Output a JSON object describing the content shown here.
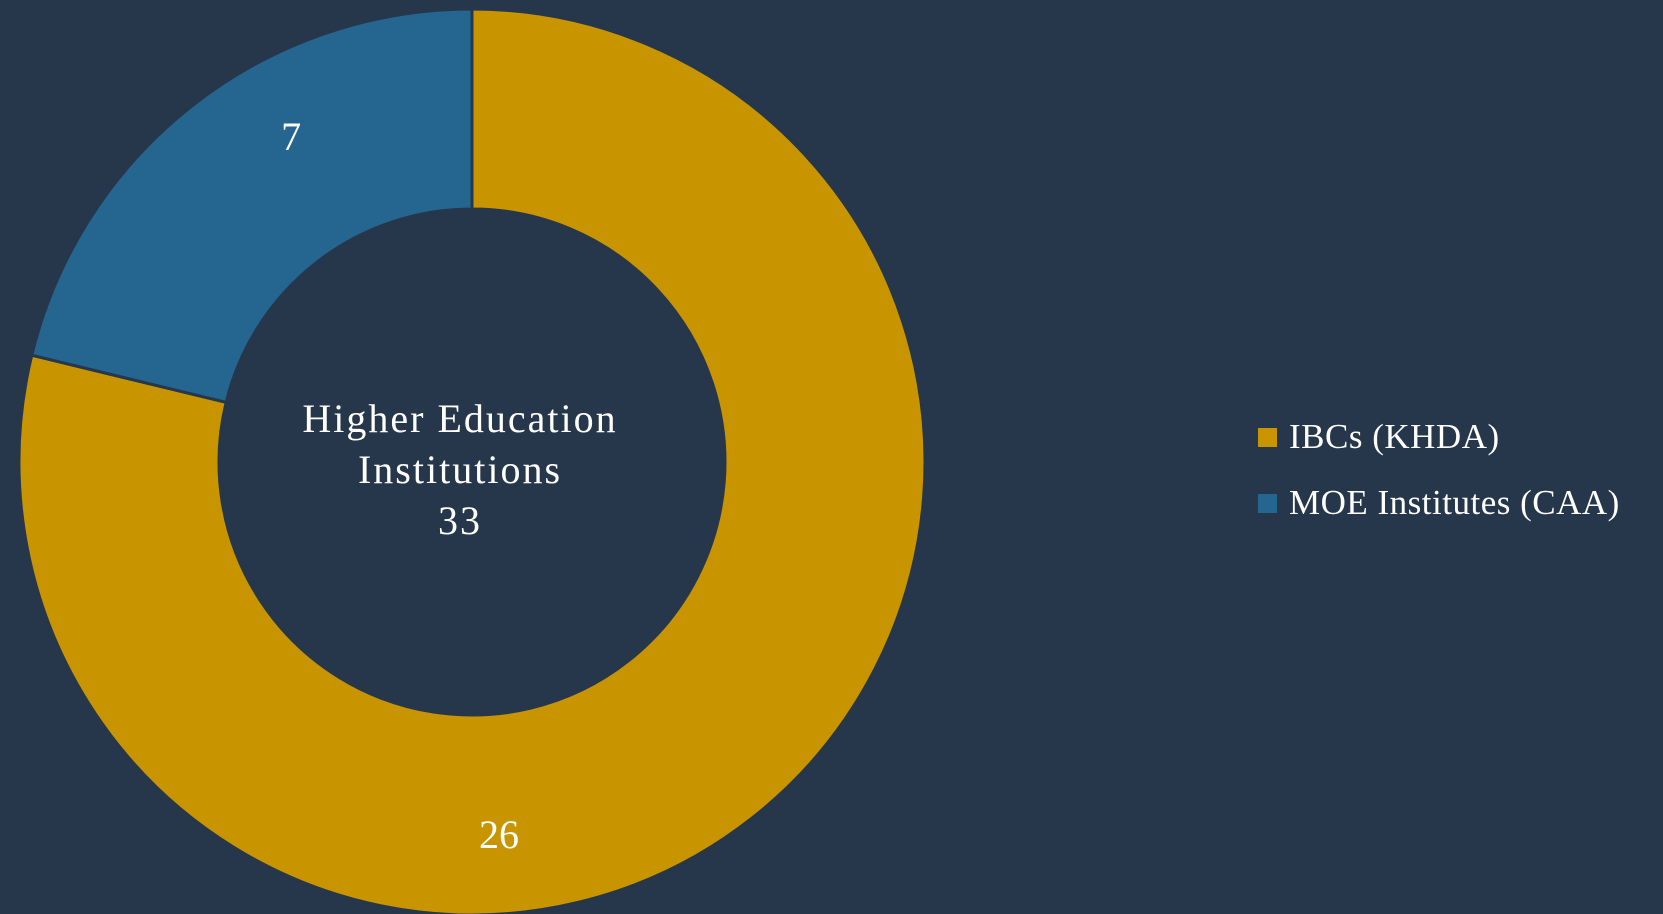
{
  "chart_data": {
    "type": "pie",
    "style": "donut",
    "center_label": {
      "line1": "Higher Education",
      "line2": "Institutions",
      "total": "33"
    },
    "slices": [
      {
        "name": "IBCs (KHDA)",
        "value": 26,
        "color": "#c89400"
      },
      {
        "name": "MOE Institutes (CAA)",
        "value": 7,
        "color": "#256690"
      }
    ],
    "legend_position": "right",
    "background_color": "#27374b"
  }
}
